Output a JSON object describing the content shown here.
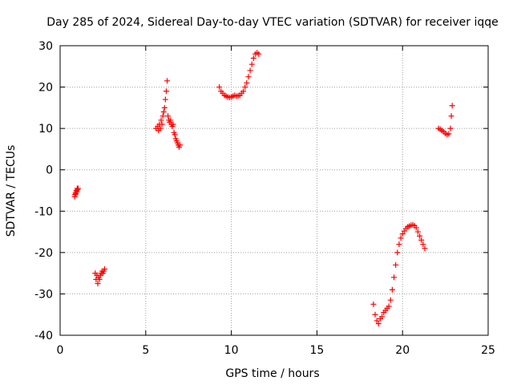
{
  "chart_data": {
    "type": "scatter",
    "title": "Day 285 of 2024, Sidereal Day-to-day VTEC variation (SDTVAR) for receiver iqqe",
    "xlabel": "GPS time / hours",
    "ylabel": "SDTVAR / TECUs",
    "xlim": [
      0,
      25
    ],
    "ylim": [
      -40,
      30
    ],
    "xticks": [
      0,
      5,
      10,
      15,
      20,
      25
    ],
    "yticks": [
      -40,
      -30,
      -20,
      -10,
      0,
      10,
      20,
      30
    ],
    "xtick_labels": [
      "0",
      "5",
      "10",
      "15",
      "20",
      "25"
    ],
    "ytick_labels": [
      "-40",
      "-30",
      "-20",
      "-10",
      "0",
      "10",
      "20",
      "30"
    ],
    "grid": true,
    "marker": "+",
    "color": "#ff0000",
    "series": [
      {
        "name": "SDTVAR",
        "x": [
          0.85,
          0.87,
          0.9,
          0.92,
          0.95,
          0.98,
          1.0,
          1.02,
          1.05,
          2.05,
          2.1,
          2.15,
          2.2,
          2.25,
          2.3,
          2.35,
          2.4,
          2.45,
          2.5,
          2.55,
          2.6,
          5.6,
          5.7,
          5.75,
          5.8,
          5.85,
          5.9,
          5.95,
          6.0,
          6.05,
          6.1,
          6.15,
          6.2,
          6.25,
          6.3,
          6.35,
          6.4,
          6.45,
          6.5,
          6.55,
          6.6,
          6.65,
          6.7,
          6.75,
          6.8,
          6.85,
          6.9,
          6.95,
          7.0,
          9.3,
          9.4,
          9.5,
          9.6,
          9.7,
          9.8,
          9.9,
          10.0,
          10.1,
          10.2,
          10.3,
          10.4,
          10.5,
          10.6,
          10.7,
          10.8,
          10.9,
          11.0,
          11.1,
          11.2,
          11.3,
          11.4,
          11.5,
          11.6,
          18.3,
          18.4,
          18.5,
          18.6,
          18.7,
          18.8,
          18.9,
          19.0,
          19.1,
          19.2,
          19.3,
          19.4,
          19.5,
          19.6,
          19.7,
          19.8,
          19.9,
          20.0,
          20.1,
          20.2,
          20.3,
          20.4,
          20.5,
          20.6,
          20.7,
          20.8,
          20.9,
          21.0,
          21.1,
          21.2,
          21.3,
          22.1,
          22.2,
          22.3,
          22.4,
          22.5,
          22.6,
          22.7,
          22.8,
          22.85,
          22.9
        ],
        "y": [
          -6.5,
          -6,
          -5.5,
          -5.8,
          -5,
          -5.3,
          -4.5,
          -4.8,
          -4.5,
          -25,
          -26.5,
          -25.5,
          -27.5,
          -26,
          -26.5,
          -25.5,
          -25,
          -24.5,
          -25,
          -24.5,
          -24,
          10,
          10.5,
          9.5,
          11,
          10,
          12,
          11,
          13,
          14,
          15,
          17,
          19,
          21.5,
          13,
          12,
          11.5,
          12,
          11,
          10.5,
          11,
          9,
          8.5,
          7.5,
          7,
          6.5,
          6,
          5.5,
          6,
          20,
          19,
          18.5,
          18,
          17.8,
          17.6,
          17.5,
          17.6,
          17.8,
          18,
          17.8,
          17.9,
          18,
          18.5,
          19,
          20,
          21,
          22.5,
          24,
          25.5,
          27,
          28,
          28.3,
          28,
          -32.5,
          -35,
          -36.5,
          -37.2,
          -36,
          -35.5,
          -34.5,
          -34,
          -33.5,
          -33,
          -31.5,
          -29,
          -26,
          -23,
          -20,
          -18,
          -16.5,
          -15.5,
          -14.8,
          -14.2,
          -13.8,
          -13.6,
          -13.4,
          -13.3,
          -13.5,
          -14,
          -15,
          -16,
          -17,
          -18,
          -19,
          10,
          9.8,
          9.5,
          9.2,
          8.8,
          8.5,
          8.7,
          10,
          13,
          15.5
        ]
      }
    ]
  }
}
